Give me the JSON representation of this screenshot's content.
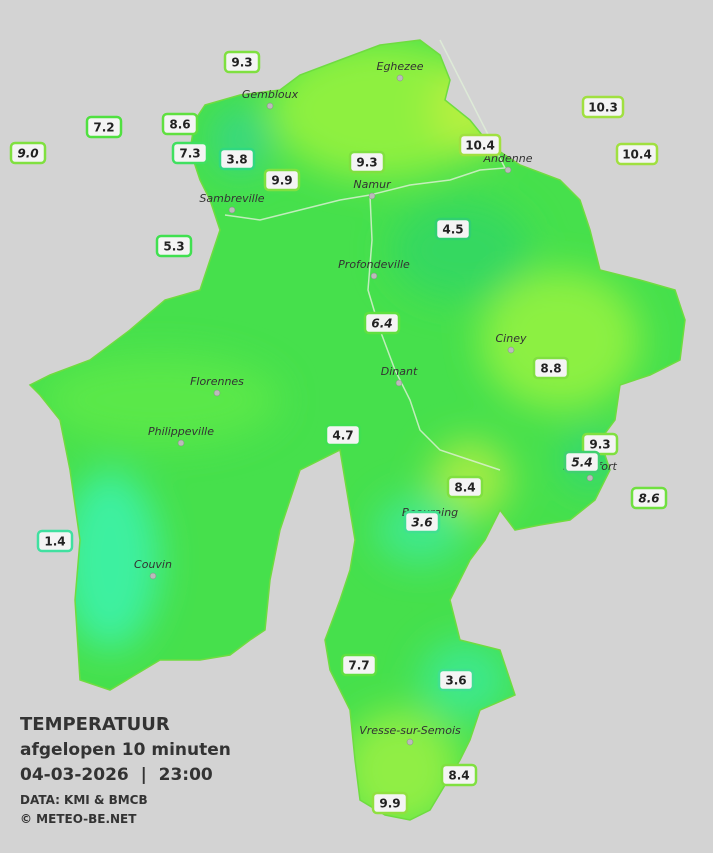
{
  "title": {
    "heading": "TEMPERATUUR",
    "subtitle": "afgelopen 10 minuten",
    "timestamp": "04-03-2026  |  23:00",
    "source": "DATA: KMI & BMCB",
    "copyright": "© METEO-BE.NET"
  },
  "cities": [
    "Eghezee",
    "Gembloux",
    "Andenne",
    "Namur",
    "Sambreville",
    "Profondeville",
    "Ciney",
    "Dinant",
    "Florennes",
    "Philippeville",
    "Rochefort",
    "Beauraing",
    "Couvin",
    "Vresse-sur-Semois"
  ],
  "stations": [
    {
      "label": "9.3",
      "italic": false
    },
    {
      "label": "7.2",
      "italic": false
    },
    {
      "label": "8.6",
      "italic": false
    },
    {
      "label": "9.0",
      "italic": true
    },
    {
      "label": "7.3",
      "italic": false
    },
    {
      "label": "3.8",
      "italic": false
    },
    {
      "label": "9.9",
      "italic": false
    },
    {
      "label": "9.3",
      "italic": false
    },
    {
      "label": "10.4",
      "italic": false
    },
    {
      "label": "10.3",
      "italic": false
    },
    {
      "label": "10.4",
      "italic": false
    },
    {
      "label": "5.3",
      "italic": false
    },
    {
      "label": "4.5",
      "italic": false
    },
    {
      "label": "6.4",
      "italic": true
    },
    {
      "label": "8.8",
      "italic": false
    },
    {
      "label": "4.7",
      "italic": false
    },
    {
      "label": "9.3",
      "italic": false
    },
    {
      "label": "5.4",
      "italic": true
    },
    {
      "label": "8.6",
      "italic": true
    },
    {
      "label": "8.4",
      "italic": false
    },
    {
      "label": "3.6",
      "italic": true
    },
    {
      "label": "1.4",
      "italic": false
    },
    {
      "label": "7.7",
      "italic": false
    },
    {
      "label": "3.6",
      "italic": false
    },
    {
      "label": "8.4",
      "italic": false
    },
    {
      "label": "9.9",
      "italic": false
    }
  ]
}
